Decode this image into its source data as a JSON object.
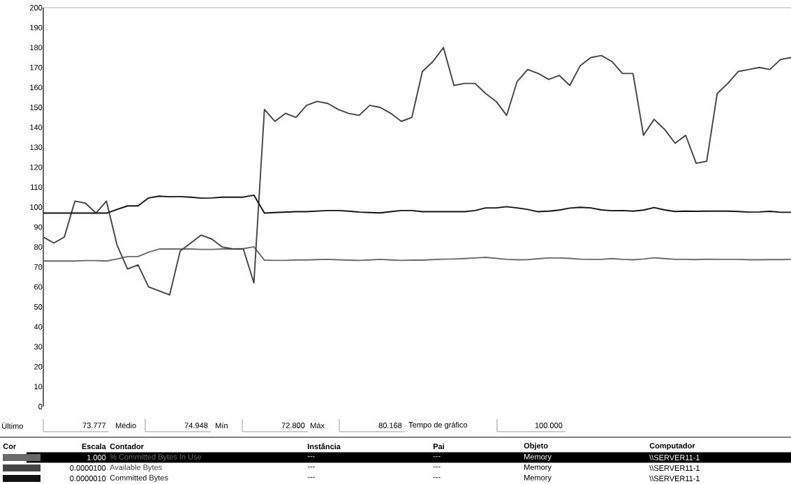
{
  "chart_data": {
    "type": "line",
    "categories": [
      null,
      null,
      null,
      null,
      null,
      null,
      null,
      null,
      null,
      null,
      null,
      null,
      null,
      null,
      null,
      null,
      null,
      null,
      null,
      null,
      null,
      null,
      null,
      null,
      null,
      null,
      null,
      null,
      null,
      null,
      null,
      null,
      null,
      null,
      null,
      null,
      null,
      null,
      null,
      null,
      null,
      null,
      null,
      null,
      null,
      null,
      null,
      null,
      null,
      null,
      null,
      null,
      null,
      null,
      null,
      null,
      null,
      null,
      null,
      null,
      null,
      null,
      null,
      null,
      null,
      null,
      null,
      null,
      null,
      null,
      null,
      null
    ],
    "series": [
      {
        "name": "% Committed Bytes In Use",
        "color": "#6a6a6a",
        "values": [
          73,
          73,
          73,
          73,
          73.2,
          73.2,
          73,
          74,
          75.2,
          75.2,
          77.4,
          79,
          79,
          79,
          79,
          78.8,
          78.8,
          79,
          79,
          79.2,
          80.1,
          73.4,
          73.3,
          73.3,
          73.5,
          73.5,
          73.7,
          73.8,
          73.6,
          73.4,
          73.3,
          73.5,
          73.8,
          73.5,
          73.3,
          73.4,
          73.4,
          73.7,
          73.9,
          74,
          74.2,
          74.5,
          74.8,
          74.3,
          73.8,
          73.6,
          73.7,
          74.1,
          74.5,
          74.5,
          74.3,
          73.9,
          73.8,
          73.8,
          74.2,
          73.8,
          73.6,
          74,
          74.6,
          74.2,
          73.8,
          73.8,
          73.7,
          73.9,
          73.8,
          73.8,
          73.8,
          73.6,
          73.6,
          73.7,
          73.7,
          73.8
        ]
      },
      {
        "name": "Available Bytes",
        "color": "#444444",
        "values": [
          85,
          82,
          85,
          103,
          102,
          97,
          103,
          81,
          69,
          71,
          60,
          58,
          56,
          78,
          82,
          86,
          84,
          80,
          79,
          79,
          62,
          149,
          143,
          147,
          145,
          151,
          153,
          152,
          149,
          147,
          146,
          151,
          150,
          147,
          143,
          145,
          168,
          173,
          180,
          161,
          162,
          162,
          157,
          153,
          146,
          163,
          169,
          167,
          164,
          166,
          161,
          171,
          175,
          176,
          173,
          167,
          167,
          136,
          144,
          139,
          132,
          136,
          122,
          123,
          157,
          162,
          168,
          169,
          170,
          169,
          174,
          175
        ]
      },
      {
        "name": "Committed Bytes",
        "color": "#121212",
        "values": [
          97,
          97,
          97,
          97,
          97,
          97,
          97,
          98.8,
          100.6,
          100.6,
          104.6,
          105.5,
          105.2,
          105.3,
          105,
          104.5,
          104.6,
          105,
          105,
          105,
          106,
          97,
          97.3,
          97.5,
          97.7,
          97.7,
          98,
          98.3,
          98.3,
          98,
          97.5,
          97.3,
          97.1,
          97.7,
          98.3,
          98.3,
          97.7,
          97.7,
          97.7,
          97.7,
          97.7,
          98.3,
          99.6,
          99.6,
          100.2,
          99.6,
          98.8,
          97.7,
          98,
          98.5,
          99.5,
          99.9,
          99.6,
          98.6,
          98.2,
          98.3,
          98,
          98.5,
          99.8,
          98.6,
          97.8,
          98,
          97.9,
          98,
          98,
          98,
          97.8,
          97.5,
          97.6,
          97.9,
          97.4,
          97.4
        ]
      }
    ],
    "ylim": [
      0,
      200
    ],
    "yticks": [
      0,
      10,
      20,
      30,
      40,
      50,
      60,
      70,
      80,
      90,
      100,
      110,
      120,
      130,
      140,
      150,
      160,
      170,
      180,
      190,
      200
    ],
    "tick_labels": "y",
    "marker": "none",
    "line_style": "solid",
    "legend": "bottom",
    "annotations": [
      "Último",
      "73.777",
      "Médio",
      "74.948",
      "Mín",
      "72.800",
      "Máx",
      "80.168",
      "Tempo de gráfico",
      "100.000",
      "Cor",
      "Escala",
      "Contador",
      "Instância",
      "Pai",
      "Objeto",
      "Computador",
      "1.000",
      "---",
      "---",
      "Memory",
      "\\\\SERVER11-1",
      "0.0000100",
      "---",
      "---",
      "Memory",
      "\\\\SERVER11-1",
      "0.0000010",
      "---",
      "---",
      "Memory",
      "\\\\SERVER11-1"
    ]
  }
}
